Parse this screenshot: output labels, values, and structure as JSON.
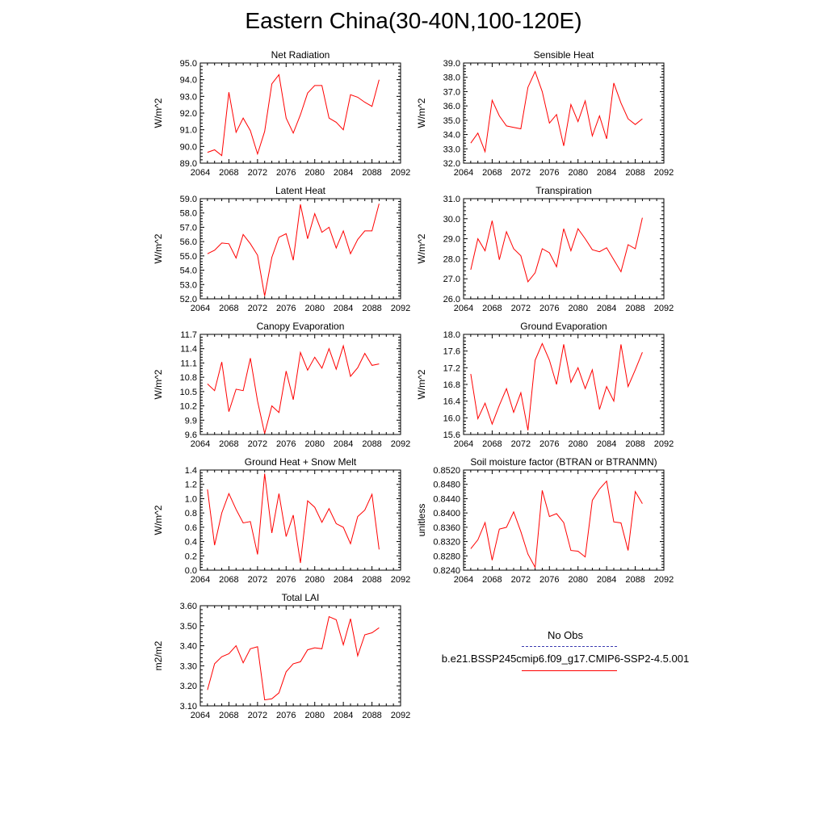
{
  "title": "Eastern China(30-40N,100-120E)",
  "chart_data": [
    {
      "type": "line",
      "title": "Net Radiation",
      "ylabel": "W/m^2",
      "xlim": [
        2064,
        2092
      ],
      "ylim": [
        89.0,
        95.0
      ],
      "xticks": [
        2064,
        2068,
        2072,
        2076,
        2080,
        2084,
        2088,
        2092
      ],
      "yticks": [
        "89.0",
        "90.0",
        "91.0",
        "92.0",
        "93.0",
        "94.0",
        "95.0"
      ],
      "series": [
        {
          "x": [
            2065,
            2066,
            2067,
            2068,
            2069,
            2070,
            2071,
            2072,
            2073,
            2074,
            2075,
            2076,
            2077,
            2078,
            2079,
            2080,
            2081,
            2082,
            2083,
            2084,
            2085,
            2086,
            2087,
            2088,
            2089
          ],
          "y": [
            89.65,
            89.8,
            89.45,
            93.25,
            90.85,
            91.7,
            90.95,
            89.55,
            90.9,
            93.75,
            94.3,
            91.7,
            90.8,
            91.9,
            93.2,
            93.65,
            93.65,
            91.7,
            91.45,
            91.0,
            93.1,
            92.95,
            92.65,
            92.4,
            94.0
          ]
        }
      ]
    },
    {
      "type": "line",
      "title": "Sensible Heat",
      "ylabel": "W/m^2",
      "xlim": [
        2064,
        2092
      ],
      "ylim": [
        32.0,
        39.0
      ],
      "xticks": [
        2064,
        2068,
        2072,
        2076,
        2080,
        2084,
        2088,
        2092
      ],
      "yticks": [
        "32.0",
        "33.0",
        "34.0",
        "35.0",
        "36.0",
        "37.0",
        "38.0",
        "39.0"
      ],
      "series": [
        {
          "x": [
            2065,
            2066,
            2067,
            2068,
            2069,
            2070,
            2071,
            2072,
            2073,
            2074,
            2075,
            2076,
            2077,
            2078,
            2079,
            2080,
            2081,
            2082,
            2083,
            2084,
            2085,
            2086,
            2087,
            2088,
            2089
          ],
          "y": [
            33.4,
            34.1,
            32.8,
            36.4,
            35.3,
            34.6,
            34.5,
            34.4,
            37.3,
            38.4,
            37.0,
            34.8,
            35.4,
            33.2,
            36.1,
            34.9,
            36.35,
            33.9,
            35.3,
            33.7,
            37.6,
            36.2,
            35.1,
            34.7,
            35.1
          ]
        }
      ]
    },
    {
      "type": "line",
      "title": "Latent Heat",
      "ylabel": "W/m^2",
      "xlim": [
        2064,
        2092
      ],
      "ylim": [
        52.0,
        59.0
      ],
      "xticks": [
        2064,
        2068,
        2072,
        2076,
        2080,
        2084,
        2088,
        2092
      ],
      "yticks": [
        "52.0",
        "53.0",
        "54.0",
        "55.0",
        "56.0",
        "57.0",
        "58.0",
        "59.0"
      ],
      "series": [
        {
          "x": [
            2065,
            2066,
            2067,
            2068,
            2069,
            2070,
            2071,
            2072,
            2073,
            2074,
            2075,
            2076,
            2077,
            2078,
            2079,
            2080,
            2081,
            2082,
            2083,
            2084,
            2085,
            2086,
            2087,
            2088,
            2089
          ],
          "y": [
            55.15,
            55.4,
            55.9,
            55.85,
            54.85,
            56.5,
            55.85,
            55.05,
            52.2,
            54.9,
            56.3,
            56.55,
            54.7,
            58.6,
            56.2,
            57.95,
            56.65,
            57.0,
            55.55,
            56.75,
            55.15,
            56.15,
            56.75,
            56.75,
            58.65
          ]
        }
      ]
    },
    {
      "type": "line",
      "title": "Transpiration",
      "ylabel": "W/m^2",
      "xlim": [
        2064,
        2092
      ],
      "ylim": [
        26.0,
        31.0
      ],
      "xticks": [
        2064,
        2068,
        2072,
        2076,
        2080,
        2084,
        2088,
        2092
      ],
      "yticks": [
        "26.0",
        "27.0",
        "28.0",
        "29.0",
        "30.0",
        "31.0"
      ],
      "series": [
        {
          "x": [
            2065,
            2066,
            2067,
            2068,
            2069,
            2070,
            2071,
            2072,
            2073,
            2074,
            2075,
            2076,
            2077,
            2078,
            2079,
            2080,
            2081,
            2082,
            2083,
            2084,
            2085,
            2086,
            2087,
            2088,
            2089
          ],
          "y": [
            27.45,
            29.0,
            28.4,
            29.9,
            27.95,
            29.35,
            28.5,
            28.15,
            26.85,
            27.3,
            28.5,
            28.3,
            27.6,
            29.5,
            28.4,
            29.5,
            29.0,
            28.45,
            28.35,
            28.55,
            27.95,
            27.35,
            28.7,
            28.5,
            30.05
          ]
        }
      ]
    },
    {
      "type": "line",
      "title": "Canopy Evaporation",
      "ylabel": "W/m^2",
      "xlim": [
        2064,
        2092
      ],
      "ylim": [
        9.6,
        11.7
      ],
      "xticks": [
        2064,
        2068,
        2072,
        2076,
        2080,
        2084,
        2088,
        2092
      ],
      "yticks": [
        "9.6",
        "9.9",
        "10.2",
        "10.5",
        "10.8",
        "11.1",
        "11.4",
        "11.7"
      ],
      "series": [
        {
          "x": [
            2065,
            2066,
            2067,
            2068,
            2069,
            2070,
            2071,
            2072,
            2073,
            2074,
            2075,
            2076,
            2077,
            2078,
            2079,
            2080,
            2081,
            2082,
            2083,
            2084,
            2085,
            2086,
            2087,
            2088,
            2089
          ],
          "y": [
            10.66,
            10.52,
            11.12,
            10.08,
            10.55,
            10.52,
            11.2,
            10.3,
            9.62,
            10.2,
            10.06,
            10.93,
            10.33,
            11.32,
            10.95,
            11.22,
            10.99,
            11.4,
            10.97,
            11.46,
            10.82,
            11.0,
            11.3,
            11.05,
            11.08
          ]
        }
      ]
    },
    {
      "type": "line",
      "title": "Ground Evaporation",
      "ylabel": "W/m^2",
      "xlim": [
        2064,
        2092
      ],
      "ylim": [
        15.6,
        18.0
      ],
      "xticks": [
        2064,
        2068,
        2072,
        2076,
        2080,
        2084,
        2088,
        2092
      ],
      "yticks": [
        "15.6",
        "16.0",
        "16.4",
        "16.8",
        "17.2",
        "17.6",
        "18.0"
      ],
      "series": [
        {
          "x": [
            2065,
            2066,
            2067,
            2068,
            2069,
            2070,
            2071,
            2072,
            2073,
            2074,
            2075,
            2076,
            2077,
            2078,
            2079,
            2080,
            2081,
            2082,
            2083,
            2084,
            2085,
            2086,
            2087,
            2088,
            2089
          ],
          "y": [
            17.05,
            15.98,
            16.35,
            15.85,
            16.3,
            16.7,
            16.13,
            16.6,
            15.7,
            17.38,
            17.78,
            17.38,
            16.8,
            17.76,
            16.85,
            17.2,
            16.7,
            17.15,
            16.2,
            16.75,
            16.4,
            17.76,
            16.75,
            17.15,
            17.57
          ]
        }
      ]
    },
    {
      "type": "line",
      "title": "Ground Heat + Snow Melt",
      "ylabel": "W/m^2",
      "xlim": [
        2064,
        2092
      ],
      "ylim": [
        0.0,
        1.4
      ],
      "xticks": [
        2064,
        2068,
        2072,
        2076,
        2080,
        2084,
        2088,
        2092
      ],
      "yticks": [
        "0.0",
        "0.2",
        "0.4",
        "0.6",
        "0.8",
        "1.0",
        "1.2",
        "1.4"
      ],
      "series": [
        {
          "x": [
            2065,
            2066,
            2067,
            2068,
            2069,
            2070,
            2071,
            2072,
            2073,
            2074,
            2075,
            2076,
            2077,
            2078,
            2079,
            2080,
            2081,
            2082,
            2083,
            2084,
            2085,
            2086,
            2087,
            2088,
            2089
          ],
          "y": [
            1.13,
            0.35,
            0.8,
            1.07,
            0.85,
            0.66,
            0.68,
            0.22,
            1.35,
            0.52,
            1.07,
            0.47,
            0.77,
            0.1,
            0.97,
            0.88,
            0.67,
            0.86,
            0.65,
            0.6,
            0.37,
            0.75,
            0.84,
            1.06,
            0.29
          ]
        }
      ]
    },
    {
      "type": "line",
      "title": "Soil moisture factor (BTRAN or BTRANMN)",
      "ylabel": "unitless",
      "xlim": [
        2064,
        2092
      ],
      "ylim": [
        0.824,
        0.852
      ],
      "xticks": [
        2064,
        2068,
        2072,
        2076,
        2080,
        2084,
        2088,
        2092
      ],
      "yticks": [
        "0.8240",
        "0.8280",
        "0.8320",
        "0.8360",
        "0.8400",
        "0.8440",
        "0.8480",
        "0.8520"
      ],
      "series": [
        {
          "x": [
            2065,
            2066,
            2067,
            2068,
            2069,
            2070,
            2071,
            2072,
            2073,
            2074,
            2075,
            2076,
            2077,
            2078,
            2079,
            2080,
            2081,
            2082,
            2083,
            2084,
            2085,
            2086,
            2087,
            2088,
            2089
          ],
          "y": [
            0.83,
            0.8325,
            0.8373,
            0.8268,
            0.8355,
            0.836,
            0.8403,
            0.8348,
            0.8285,
            0.8248,
            0.8463,
            0.839,
            0.8398,
            0.8373,
            0.8295,
            0.8293,
            0.8277,
            0.8435,
            0.8467,
            0.8489,
            0.8375,
            0.8372,
            0.8295,
            0.846,
            0.8426
          ]
        }
      ]
    },
    {
      "type": "line",
      "title": "Total LAI",
      "ylabel": "m2/m2",
      "xlim": [
        2064,
        2092
      ],
      "ylim": [
        3.1,
        3.6
      ],
      "xticks": [
        2064,
        2068,
        2072,
        2076,
        2080,
        2084,
        2088,
        2092
      ],
      "yticks": [
        "3.10",
        "3.20",
        "3.30",
        "3.40",
        "3.50",
        "3.60"
      ],
      "series": [
        {
          "x": [
            2065,
            2066,
            2067,
            2068,
            2069,
            2070,
            2071,
            2072,
            2073,
            2074,
            2075,
            2076,
            2077,
            2078,
            2079,
            2080,
            2081,
            2082,
            2083,
            2084,
            2085,
            2086,
            2087,
            2088,
            2089
          ],
          "y": [
            3.18,
            3.31,
            3.345,
            3.36,
            3.4,
            3.315,
            3.385,
            3.395,
            3.13,
            3.135,
            3.165,
            3.27,
            3.31,
            3.32,
            3.38,
            3.39,
            3.385,
            3.545,
            3.53,
            3.405,
            3.535,
            3.35,
            3.455,
            3.465,
            3.49
          ]
        }
      ]
    }
  ],
  "legend": {
    "items": [
      {
        "label": "No Obs",
        "color": "#3b3bb0",
        "dash": "dashed"
      },
      {
        "label": "b.e21.BSSP245cmip6.f09_g17.CMIP6-SSP2-4.5.001",
        "color": "#ff0000",
        "dash": "solid"
      }
    ]
  }
}
